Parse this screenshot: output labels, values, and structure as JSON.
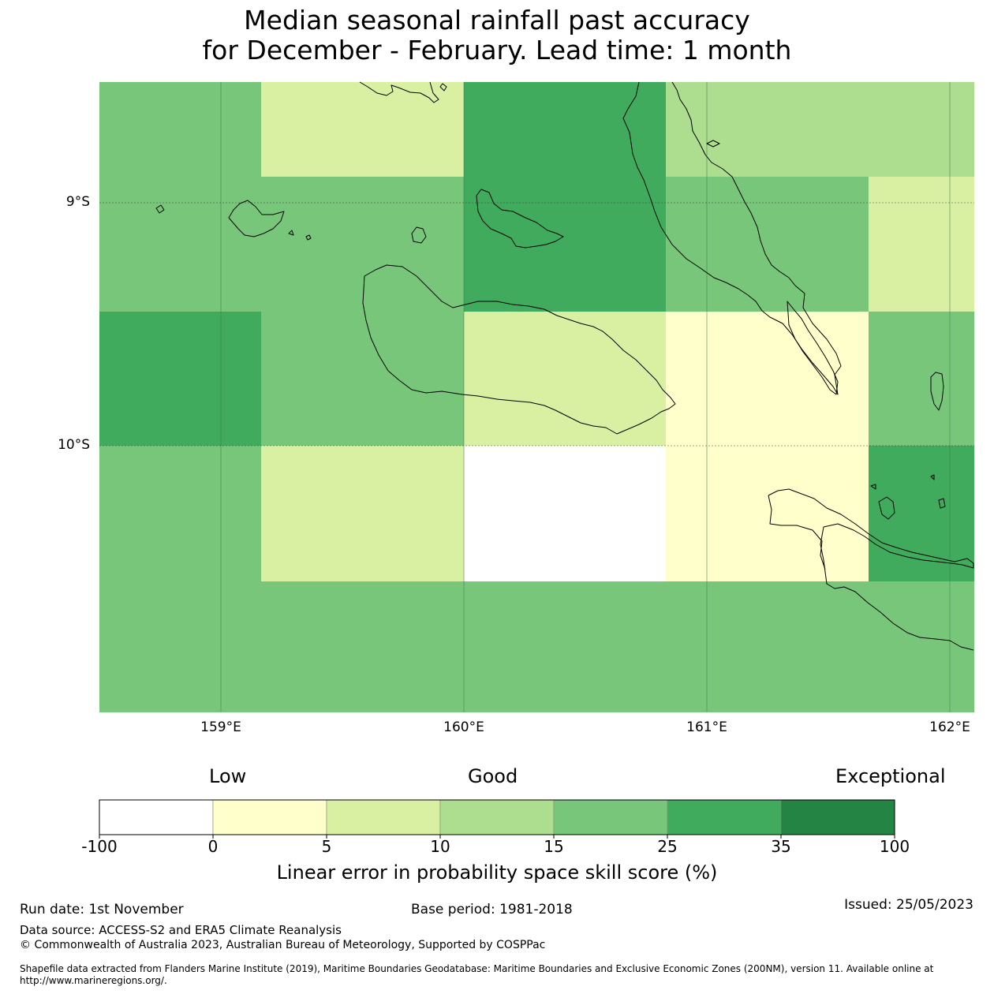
{
  "title": {
    "line1": "Median seasonal rainfall past accuracy",
    "line2": "for December - February. Lead time: 1 month"
  },
  "map": {
    "lat_labels": [
      "9°S",
      "10°S"
    ],
    "lon_labels": [
      "159°E",
      "160°E",
      "161°E",
      "162°E"
    ],
    "grid_categories": [
      [
        4,
        2,
        5,
        3,
        3
      ],
      [
        4,
        4,
        5,
        4,
        2
      ],
      [
        5,
        4,
        2,
        1,
        4
      ],
      [
        4,
        2,
        0,
        1,
        5
      ],
      [
        4,
        4,
        4,
        4,
        4
      ]
    ]
  },
  "legend": {
    "categories": [
      "Low",
      "Good",
      "Exceptional"
    ],
    "ticks": [
      "-100",
      "0",
      "5",
      "10",
      "15",
      "25",
      "35",
      "100"
    ],
    "colors": [
      "#ffffff",
      "#ffffcc",
      "#d9f0a3",
      "#addd8e",
      "#78c679",
      "#41ab5d",
      "#238443"
    ],
    "label": "Linear error in probability space skill score (%)"
  },
  "footer": {
    "run_date": "Run date: 1st November",
    "base_period": "Base period: 1981-2018",
    "issued": "Issued: 25/05/2023",
    "data_source": "Data source: ACCESS-S2 and ERA5 Climate Reanalysis",
    "copyright": "© Commonwealth of Australia 2023, Australian Bureau of Meteorology, Supported by COSPPac",
    "shapefile_line1": "Shapefile data extracted from Flanders Marine Institute (2019), Maritime Boundaries Geodatabase: Maritime Boundaries and Exclusive Economic Zones (200NM), version 11. Available online at",
    "shapefile_line2": "http://www.marineregions.org/."
  }
}
